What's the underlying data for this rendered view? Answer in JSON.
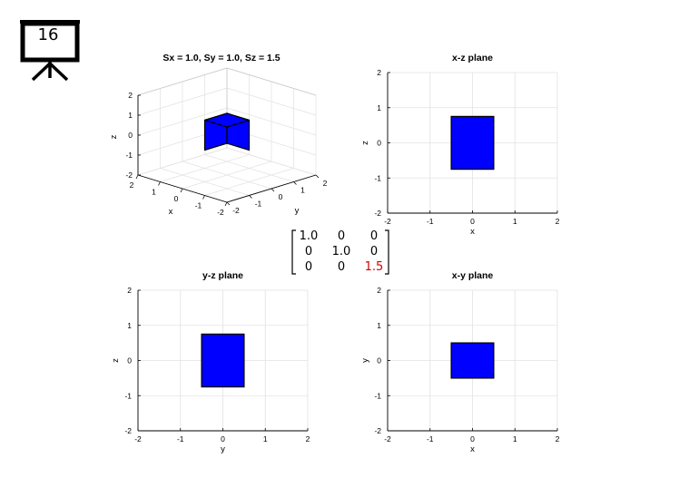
{
  "slide": {
    "number": "16",
    "icon": "presentation-board-icon"
  },
  "colors": {
    "box_fill": "#0000ff",
    "box_edge": "#000000",
    "grid": "#e2e2e2",
    "highlight": "#d40000"
  },
  "view3d": {
    "title": "Sx = 1.0, Sy = 1.0, Sz = 1.5",
    "xlabel": "x",
    "ylabel": "y",
    "zlabel": "z",
    "x_ticks": [
      "-2",
      "-1",
      "0",
      "1",
      "2"
    ],
    "y_ticks": [
      "-2",
      "-1",
      "0",
      "1",
      "2"
    ],
    "z_ticks": [
      "-2",
      "-1",
      "0",
      "1",
      "2"
    ]
  },
  "matrix": {
    "rows": [
      [
        "1.0",
        "0",
        "0"
      ],
      [
        "0",
        "1.0",
        "0"
      ],
      [
        "0",
        "0",
        "1.5"
      ]
    ],
    "highlight_cell": "2,2"
  },
  "chart_data": [
    {
      "type": "rectangle",
      "title": "x-z plane",
      "xlabel": "x",
      "ylabel": "z",
      "xlim": [
        -2,
        2
      ],
      "ylim": [
        -2,
        2
      ],
      "grid": true,
      "x_ticks": [
        "-2",
        "-1",
        "0",
        "1",
        "2"
      ],
      "y_ticks": [
        "-2",
        "-1",
        "0",
        "1",
        "2"
      ],
      "rect": {
        "x": [
          -0.5,
          0.5
        ],
        "y": [
          -0.75,
          0.75
        ]
      }
    },
    {
      "type": "rectangle",
      "title": "y-z plane",
      "xlabel": "y",
      "ylabel": "z",
      "xlim": [
        -2,
        2
      ],
      "ylim": [
        -2,
        2
      ],
      "grid": true,
      "x_ticks": [
        "-2",
        "-1",
        "0",
        "1",
        "2"
      ],
      "y_ticks": [
        "-2",
        "-1",
        "0",
        "1",
        "2"
      ],
      "rect": {
        "x": [
          -0.5,
          0.5
        ],
        "y": [
          -0.75,
          0.75
        ]
      }
    },
    {
      "type": "rectangle",
      "title": "x-y plane",
      "xlabel": "x",
      "ylabel": "y",
      "xlim": [
        -2,
        2
      ],
      "ylim": [
        -2,
        2
      ],
      "grid": true,
      "x_ticks": [
        "-2",
        "-1",
        "0",
        "1",
        "2"
      ],
      "y_ticks": [
        "-2",
        "-1",
        "0",
        "1",
        "2"
      ],
      "rect": {
        "x": [
          -0.5,
          0.5
        ],
        "y": [
          -0.5,
          0.5
        ]
      }
    }
  ]
}
